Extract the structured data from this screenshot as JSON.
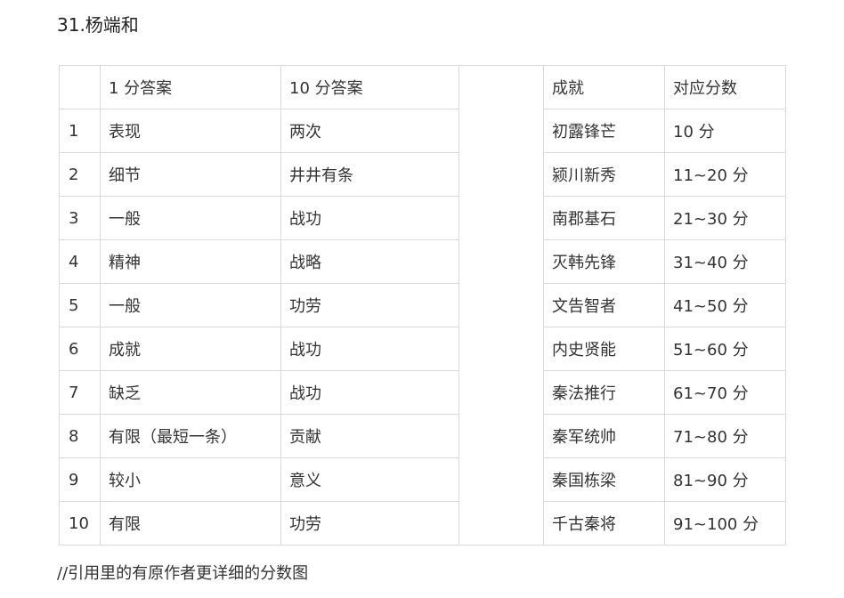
{
  "title": "31.杨端和",
  "left_table": {
    "headers": [
      "",
      "1 分答案",
      "10 分答案"
    ],
    "rows": [
      [
        "1",
        "表现",
        "两次"
      ],
      [
        "2",
        "细节",
        "井井有条"
      ],
      [
        "3",
        "一般",
        "战功"
      ],
      [
        "4",
        "精神",
        "战略"
      ],
      [
        "5",
        "一般",
        "功劳"
      ],
      [
        "6",
        "成就",
        "战功"
      ],
      [
        "7",
        "缺乏",
        "战功"
      ],
      [
        "8",
        "有限（最短一条）",
        "贡献"
      ],
      [
        "9",
        "较小",
        "意义"
      ],
      [
        "10",
        "有限",
        "功劳"
      ]
    ]
  },
  "right_table": {
    "headers": [
      "成就",
      "对应分数"
    ],
    "rows": [
      [
        "初露锋芒",
        "10 分"
      ],
      [
        "颍川新秀",
        "11~20 分"
      ],
      [
        "南郡基石",
        "21~30 分"
      ],
      [
        "灭韩先锋",
        "31~40 分"
      ],
      [
        "文告智者",
        "41~50 分"
      ],
      [
        "内史贤能",
        "51~60 分"
      ],
      [
        "秦法推行",
        "61~70 分"
      ],
      [
        "秦军统帅",
        "71~80 分"
      ],
      [
        "秦国栋梁",
        "81~90 分"
      ],
      [
        "千古秦将",
        "91~100 分"
      ]
    ]
  },
  "footer_note": "//引用里的有原作者更详细的分数图"
}
